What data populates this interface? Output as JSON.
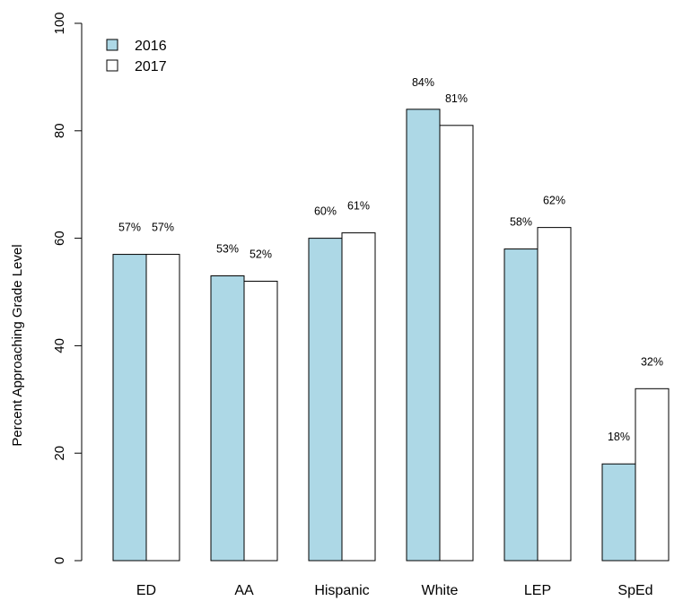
{
  "chart_data": {
    "type": "bar",
    "categories": [
      "ED",
      "AA",
      "Hispanic",
      "White",
      "LEP",
      "SpEd"
    ],
    "series": [
      {
        "name": "2016",
        "values": [
          57,
          53,
          60,
          84,
          58,
          18
        ],
        "labels": [
          "57%",
          "53%",
          "60%",
          "84%",
          "58%",
          "18%"
        ],
        "color": "#add8e6"
      },
      {
        "name": "2017",
        "values": [
          57,
          52,
          61,
          81,
          62,
          32
        ],
        "labels": [
          "57%",
          "52%",
          "61%",
          "81%",
          "62%",
          "32%"
        ],
        "color": "#ffffff"
      }
    ],
    "title": "",
    "xlabel": "",
    "ylabel": "Percent Approaching Grade Level",
    "ylim": [
      0,
      100
    ],
    "yticks": [
      0,
      20,
      40,
      60,
      80,
      100
    ],
    "grid": false,
    "legend_position": "top-left"
  }
}
